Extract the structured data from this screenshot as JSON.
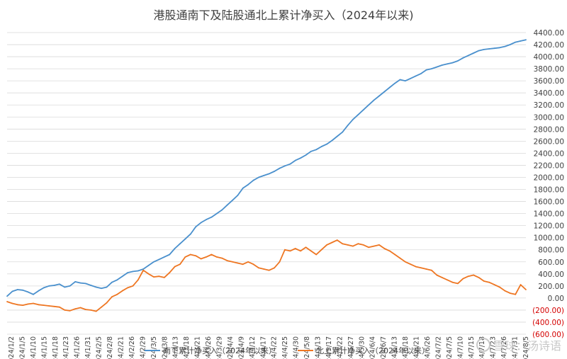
{
  "colors": {
    "south": "#4a90cd",
    "north": "#ee7622",
    "neg_tick": "#d40000",
    "grid": "#d9d9d9",
    "text": "#404040"
  },
  "watermark": {
    "icon": "snowball-icon",
    "text": "雪球：汤诗语"
  },
  "chart_data": {
    "type": "line",
    "title": "港股通南下及陆股通北上累计净买入（2024年以来)",
    "xlabel": "",
    "ylabel": "",
    "ylim": [
      -600,
      4400
    ],
    "y_ticks": [
      -600,
      -400,
      -200,
      0,
      200,
      400,
      600,
      800,
      1000,
      1200,
      1400,
      1600,
      1800,
      2000,
      2200,
      2400,
      2600,
      2800,
      3000,
      3200,
      3400,
      3600,
      3800,
      4000,
      4200,
      4400
    ],
    "y_tick_labels": [
      "(600.00)",
      "(400.00)",
      "(200.00)",
      "0.00",
      "200.00",
      "400.00",
      "600.00",
      "800.00",
      "1000.00",
      "1200.00",
      "1400.00",
      "1600.00",
      "1800.00",
      "2000.00",
      "2200.00",
      "2400.00",
      "2600.00",
      "2800.00",
      "3000.00",
      "3200.00",
      "3400.00",
      "3600.00",
      "3800.00",
      "4000.00",
      "4200.00",
      "4400.00"
    ],
    "x_tick_labels": [
      "2024/1/2",
      "2024/1/5",
      "2024/1/10",
      "2024/1/15",
      "2024/1/18",
      "2024/1/23",
      "2024/1/26",
      "2024/1/31",
      "2024/2/5",
      "2024/2/8",
      "2024/2/21",
      "2024/2/26",
      "2024/2/29",
      "2024/3/5",
      "2024/3/8",
      "2024/3/13",
      "2024/3/18",
      "2024/3/21",
      "2024/3/26",
      "2024/3/29",
      "2024/4/4",
      "2024/4/9",
      "2024/4/12",
      "2024/4/17",
      "2024/4/22",
      "2024/4/25",
      "2024/4/30",
      "2024/5/8",
      "2024/5/13",
      "2024/5/17",
      "2024/5/22",
      "2024/5/27",
      "2024/5/30",
      "2024/6/4",
      "2024/6/7",
      "2024/6/13",
      "2024/6/18",
      "2024/6/21",
      "2024/6/26",
      "2024/7/2",
      "2024/7/5",
      "2024/7/10",
      "2024/7/15",
      "2024/7/18",
      "2024/7/23",
      "2024/7/26",
      "2024/7/31",
      "2024/8/5"
    ],
    "grid": true,
    "legend_position": "bottom",
    "series": [
      {
        "name": "南下累计净买入（2024年以来）",
        "values": [
          30,
          110,
          140,
          130,
          100,
          60,
          120,
          170,
          200,
          210,
          230,
          180,
          200,
          270,
          250,
          240,
          210,
          180,
          160,
          180,
          260,
          300,
          360,
          420,
          440,
          450,
          480,
          540,
          600,
          640,
          680,
          720,
          820,
          900,
          980,
          1060,
          1180,
          1250,
          1300,
          1340,
          1400,
          1460,
          1540,
          1620,
          1700,
          1820,
          1880,
          1950,
          2000,
          2030,
          2060,
          2100,
          2150,
          2190,
          2220,
          2280,
          2320,
          2370,
          2430,
          2460,
          2510,
          2550,
          2610,
          2680,
          2750,
          2860,
          2960,
          3040,
          3120,
          3200,
          3280,
          3350,
          3420,
          3490,
          3560,
          3620,
          3600,
          3640,
          3680,
          3720,
          3780,
          3800,
          3830,
          3860,
          3880,
          3900,
          3930,
          3980,
          4020,
          4060,
          4100,
          4120,
          4130,
          4140,
          4150,
          4170,
          4200,
          4240,
          4260,
          4280
        ]
      },
      {
        "name": "北上累计净买入（2024年以来）",
        "values": [
          -60,
          -90,
          -110,
          -120,
          -100,
          -90,
          -110,
          -120,
          -130,
          -140,
          -150,
          -200,
          -210,
          -180,
          -160,
          -190,
          -200,
          -220,
          -150,
          -80,
          20,
          60,
          120,
          170,
          200,
          300,
          460,
          400,
          350,
          360,
          340,
          420,
          520,
          560,
          680,
          720,
          700,
          650,
          680,
          720,
          680,
          660,
          620,
          600,
          580,
          560,
          600,
          560,
          500,
          480,
          460,
          500,
          600,
          800,
          780,
          820,
          780,
          840,
          780,
          720,
          800,
          880,
          920,
          960,
          900,
          880,
          860,
          900,
          880,
          840,
          860,
          880,
          820,
          780,
          720,
          660,
          600,
          560,
          520,
          500,
          480,
          460,
          380,
          340,
          300,
          260,
          240,
          320,
          360,
          380,
          340,
          280,
          260,
          220,
          180,
          120,
          80,
          60,
          220,
          140
        ]
      }
    ]
  }
}
